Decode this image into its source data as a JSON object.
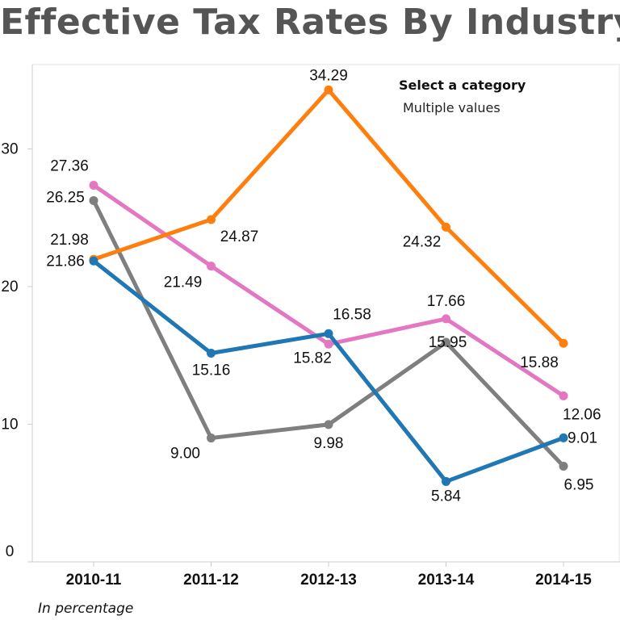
{
  "title": "Effective Tax Rates By Industry",
  "filter": {
    "label": "Select a category",
    "value": "Multiple values"
  },
  "footnote": "In percentage",
  "chart_data": {
    "type": "line",
    "title": "Effective Tax Rates By Industry",
    "xlabel": "",
    "ylabel": "",
    "categories": [
      "2010-11",
      "2011-12",
      "2012-13",
      "2013-14",
      "2014-15"
    ],
    "ylim": [
      0,
      35
    ],
    "yticks": [
      0,
      10,
      20,
      30
    ],
    "y_tick_labels": [
      "0",
      "10",
      "20",
      "30"
    ],
    "grid": false,
    "series": [
      {
        "name": "Orange series",
        "color": "#ff7f0e",
        "values": [
          21.98,
          24.87,
          34.29,
          24.32,
          15.88
        ],
        "labels": [
          "21.98",
          "24.87",
          "34.29",
          "24.32",
          "15.88"
        ]
      },
      {
        "name": "Pink series",
        "color": "#e377c2",
        "values": [
          27.36,
          21.49,
          15.82,
          17.66,
          12.06
        ],
        "labels": [
          "27.36",
          "21.49",
          "15.82",
          "17.66",
          "12.06"
        ]
      },
      {
        "name": "Gray series",
        "color": "#7f7f7f",
        "values": [
          26.25,
          9.0,
          9.98,
          15.95,
          6.95
        ],
        "labels": [
          "26.25",
          "9.00",
          "9.98",
          "15.95",
          "6.95"
        ]
      },
      {
        "name": "Blue series",
        "color": "#1f77b4",
        "values": [
          21.86,
          15.16,
          16.58,
          5.84,
          9.01
        ],
        "labels": [
          "21.86",
          "15.16",
          "16.58",
          "5.84",
          "9.01"
        ]
      }
    ]
  }
}
